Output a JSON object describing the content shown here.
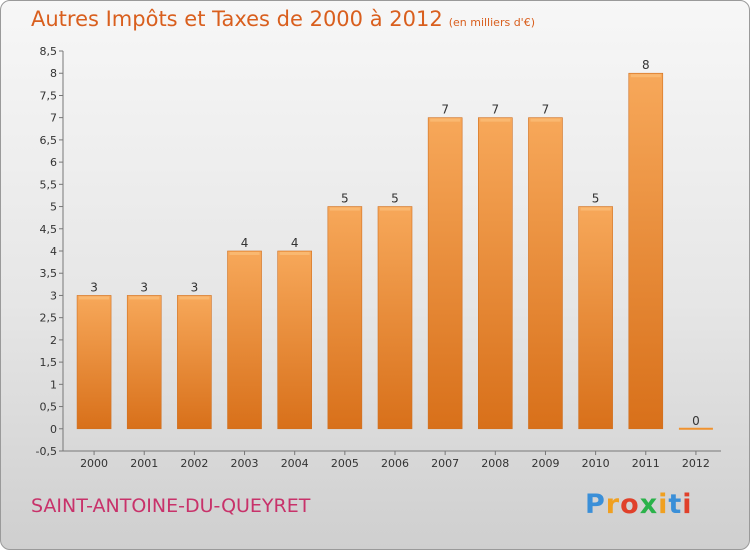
{
  "title": "Autres Impôts et Taxes de 2000 à 2012",
  "unit": "(en milliers d'€)",
  "commune": "SAINT-ANTOINE-DU-QUEYRET",
  "logo": {
    "letters": [
      "P",
      "r",
      "o",
      "x",
      "i",
      "t",
      "i"
    ],
    "colors": [
      "#3a8fd8",
      "#f0a020",
      "#e0402a",
      "#2bb24a",
      "#f0a020",
      "#3a8fd8",
      "#e0402a"
    ]
  },
  "chart_data": {
    "type": "bar",
    "title": "Autres Impôts et Taxes de 2000 à 2012",
    "subtitle": "(en milliers d'€)",
    "categories": [
      "2000",
      "2001",
      "2002",
      "2003",
      "2004",
      "2005",
      "2006",
      "2007",
      "2008",
      "2009",
      "2010",
      "2011",
      "2012"
    ],
    "values": [
      3,
      3,
      3,
      4,
      4,
      5,
      5,
      7,
      7,
      7,
      5,
      8,
      0
    ],
    "data_labels": [
      "3",
      "3",
      "3",
      "4",
      "4",
      "5",
      "5",
      "7",
      "7",
      "7",
      "5",
      "8",
      "0"
    ],
    "ylim": [
      -0.5,
      8.5
    ],
    "yticks": [
      "-0,5",
      "0",
      "0,5",
      "1",
      "1,5",
      "2",
      "2,5",
      "3",
      "3,5",
      "4",
      "4,5",
      "5",
      "5,5",
      "6",
      "6,5",
      "7",
      "7,5",
      "8",
      "8,5"
    ],
    "grid": false,
    "bar_color": "#f0922e"
  }
}
